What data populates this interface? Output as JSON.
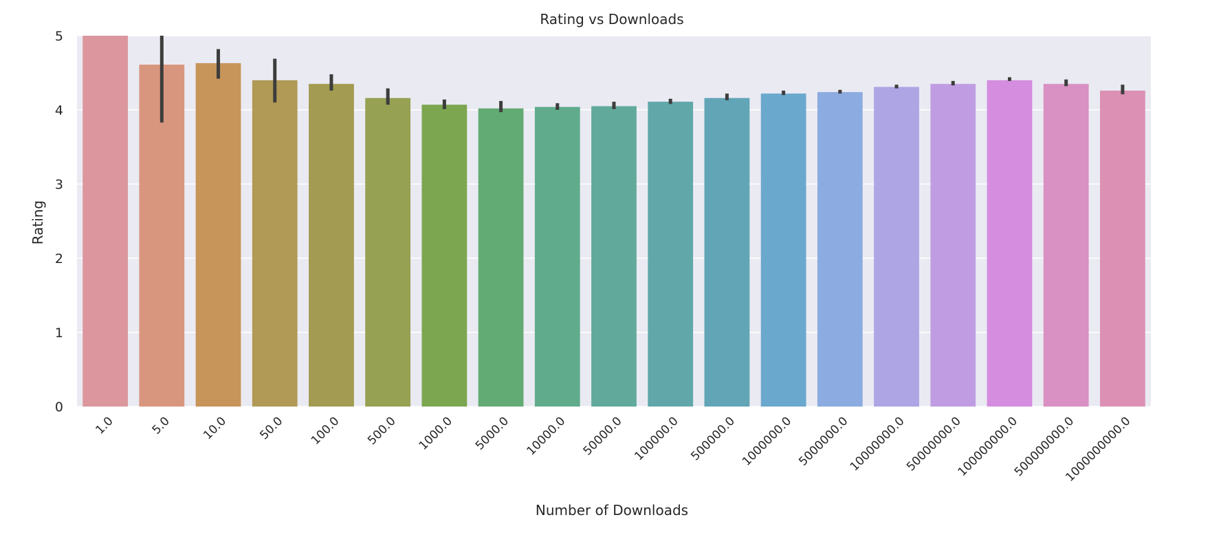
{
  "chart_data": {
    "type": "bar",
    "title": "Rating vs Downloads",
    "xlabel": "Number of Downloads",
    "ylabel": "Rating",
    "categories": [
      "1.0",
      "5.0",
      "10.0",
      "50.0",
      "100.0",
      "500.0",
      "1000.0",
      "5000.0",
      "10000.0",
      "50000.0",
      "100000.0",
      "500000.0",
      "1000000.0",
      "5000000.0",
      "10000000.0",
      "50000000.0",
      "100000000.0",
      "500000000.0",
      "1000000000.0"
    ],
    "values": [
      5.0,
      4.61,
      4.63,
      4.4,
      4.35,
      4.16,
      4.07,
      4.02,
      4.04,
      4.05,
      4.11,
      4.16,
      4.22,
      4.24,
      4.31,
      4.35,
      4.4,
      4.35,
      4.26
    ],
    "error_low": [
      5.0,
      3.83,
      4.42,
      4.1,
      4.26,
      4.07,
      4.01,
      3.97,
      4.0,
      4.01,
      4.08,
      4.13,
      4.2,
      4.22,
      4.29,
      4.33,
      4.39,
      4.32,
      4.21
    ],
    "error_high": [
      5.0,
      5.0,
      4.82,
      4.69,
      4.48,
      4.29,
      4.14,
      4.12,
      4.09,
      4.11,
      4.15,
      4.22,
      4.26,
      4.27,
      4.34,
      4.39,
      4.44,
      4.41,
      4.34
    ],
    "colors": [
      "#dc979e",
      "#d9967e",
      "#c7945a",
      "#b09a56",
      "#a29b51",
      "#96a153",
      "#7ca650",
      "#63ab74",
      "#60ab8c",
      "#61aa9b",
      "#61a7a9",
      "#61a5b7",
      "#6aa8ce",
      "#8cabe0",
      "#ada5e4",
      "#c09de2",
      "#d48ddf",
      "#d990c2",
      "#dc91b4"
    ],
    "yticks": [
      0,
      1,
      2,
      3,
      4,
      5
    ],
    "ylim": [
      0,
      5
    ],
    "grid": true,
    "legend": "none"
  }
}
